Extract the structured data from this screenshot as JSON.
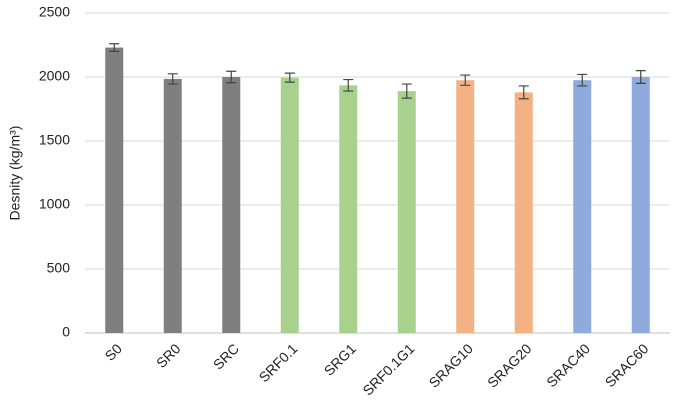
{
  "chart_data": {
    "type": "bar",
    "y_label": "Desnity (kg/m³)",
    "categories": [
      "S0",
      "SR0",
      "SRC",
      "SRF0.1",
      "SRG1",
      "SRF0.1G1",
      "SRAG10",
      "SRAG20",
      "SRAC40",
      "SRAC60"
    ],
    "values": [
      2230,
      1985,
      2000,
      1995,
      1935,
      1890,
      1975,
      1880,
      1975,
      2000
    ],
    "errors": [
      30,
      40,
      45,
      35,
      45,
      55,
      40,
      50,
      45,
      50
    ],
    "colors": [
      "#7f7f7f",
      "#7f7f7f",
      "#7f7f7f",
      "#a9d18e",
      "#a9d18e",
      "#a9d18e",
      "#f4b183",
      "#f4b183",
      "#8faadc",
      "#8faadc"
    ],
    "ylim": [
      0,
      2500
    ],
    "yticks": [
      0,
      500,
      1000,
      1500,
      2000,
      2500
    ],
    "grid": true
  }
}
